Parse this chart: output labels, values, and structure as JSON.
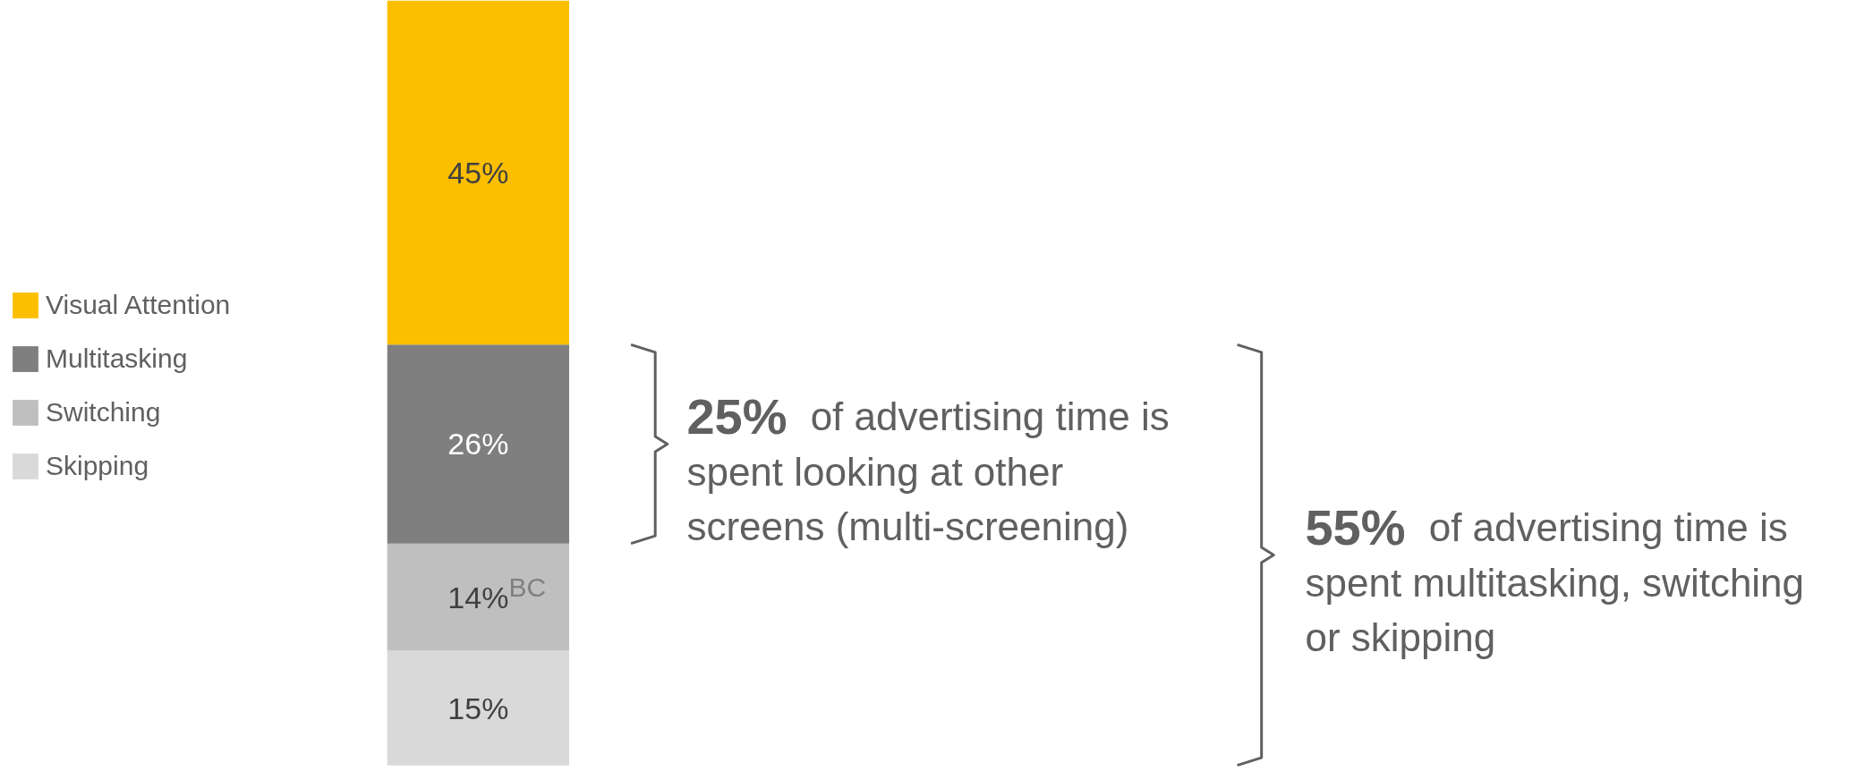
{
  "chart_data": {
    "type": "bar",
    "stacked": true,
    "categories": [
      null
    ],
    "series": [
      {
        "name": "Skipping",
        "color": "#d9d9d9",
        "values": [
          15
        ],
        "value_labels": [
          "15%"
        ]
      },
      {
        "name": "Switching",
        "color": "#bfbfbf",
        "values": [
          14
        ],
        "value_labels": [
          "14%$^{BC}$"
        ]
      },
      {
        "name": "Multitasking",
        "color": "#7f7f7f",
        "values": [
          26
        ],
        "value_labels": [
          "26%"
        ]
      },
      {
        "name": "Visual Attention",
        "color": "#fbbf00",
        "values": [
          45
        ],
        "value_labels": [
          "45%"
        ]
      }
    ],
    "tick_labels": false,
    "grid": false,
    "legend": "left",
    "annotations": [
      "25% of advertising time is spent looking at other screens (multi-screening)",
      "55% of advertising time is spent multitasking, switching or skipping"
    ]
  }
}
